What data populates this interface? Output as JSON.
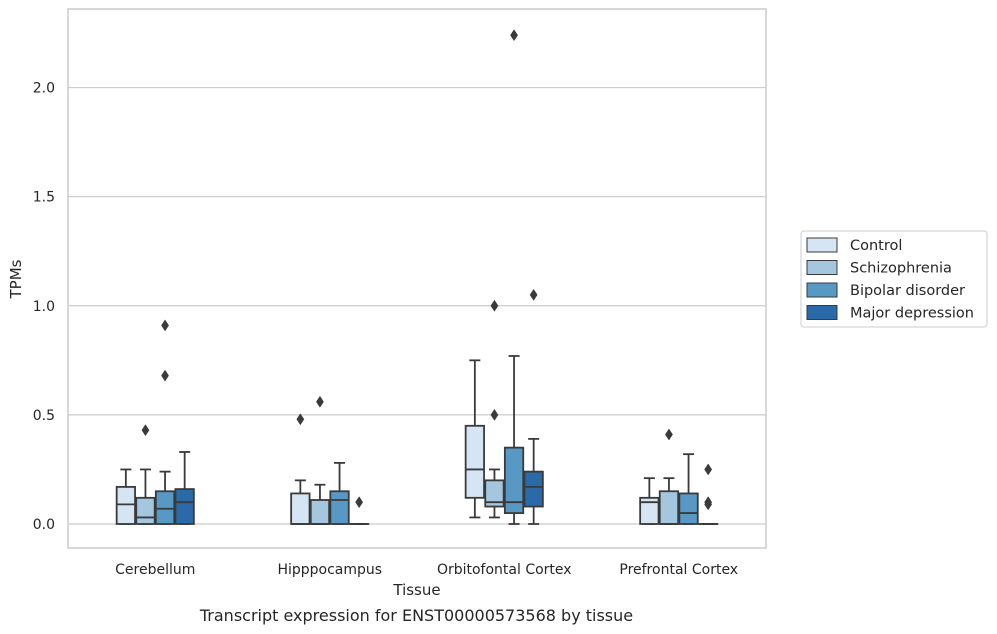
{
  "caption": "Transcript expression for ENST00000573568 by tissue",
  "chart_data": {
    "type": "box",
    "xlabel": "Tissue",
    "ylabel": "TPMs",
    "ylim": [
      -0.11,
      2.36
    ],
    "yticks": [
      0.0,
      0.5,
      1.0,
      1.5,
      2.0
    ],
    "ytick_labels": [
      "0.0",
      "0.5",
      "1.0",
      "1.5",
      "2.0"
    ],
    "grid": "horizontal",
    "legend_position": "right",
    "categories": [
      "Cerebellum",
      "Hipppocampus",
      "Orbitofontal Cortex",
      "Prefrontal Cortex"
    ],
    "series": [
      {
        "name": "Control",
        "color": "#d6e5f4",
        "boxes": [
          {
            "q1": 0.0,
            "median": 0.09,
            "q3": 0.17,
            "whislo": 0.0,
            "whishi": 0.25,
            "fliers": []
          },
          {
            "q1": 0.0,
            "median": 0.0,
            "q3": 0.14,
            "whislo": 0.0,
            "whishi": 0.2,
            "fliers": [
              0.48
            ]
          },
          {
            "q1": 0.12,
            "median": 0.25,
            "q3": 0.45,
            "whislo": 0.03,
            "whishi": 0.75,
            "fliers": []
          },
          {
            "q1": 0.0,
            "median": 0.1,
            "q3": 0.12,
            "whislo": 0.0,
            "whishi": 0.21,
            "fliers": []
          }
        ]
      },
      {
        "name": "Schizophrenia",
        "color": "#a4c7df",
        "boxes": [
          {
            "q1": 0.0,
            "median": 0.03,
            "q3": 0.12,
            "whislo": 0.0,
            "whishi": 0.25,
            "fliers": [
              0.43
            ]
          },
          {
            "q1": 0.0,
            "median": 0.0,
            "q3": 0.11,
            "whislo": 0.0,
            "whishi": 0.18,
            "fliers": [
              0.56
            ]
          },
          {
            "q1": 0.08,
            "median": 0.1,
            "q3": 0.2,
            "whislo": 0.03,
            "whishi": 0.25,
            "fliers": [
              0.5,
              1.0
            ]
          },
          {
            "q1": 0.0,
            "median": 0.0,
            "q3": 0.15,
            "whislo": 0.0,
            "whishi": 0.21,
            "fliers": [
              0.41
            ]
          }
        ]
      },
      {
        "name": "Bipolar disorder",
        "color": "#5898c4",
        "boxes": [
          {
            "q1": 0.0,
            "median": 0.07,
            "q3": 0.15,
            "whislo": 0.0,
            "whishi": 0.24,
            "fliers": [
              0.68,
              0.91
            ]
          },
          {
            "q1": 0.0,
            "median": 0.11,
            "q3": 0.15,
            "whislo": 0.0,
            "whishi": 0.28,
            "fliers": []
          },
          {
            "q1": 0.05,
            "median": 0.1,
            "q3": 0.35,
            "whislo": 0.0,
            "whishi": 0.77,
            "fliers": [
              2.24
            ]
          },
          {
            "q1": 0.0,
            "median": 0.05,
            "q3": 0.14,
            "whislo": 0.0,
            "whishi": 0.32,
            "fliers": []
          }
        ]
      },
      {
        "name": "Major depression",
        "color": "#2b6aa8",
        "boxes": [
          {
            "q1": 0.0,
            "median": 0.1,
            "q3": 0.16,
            "whislo": 0.0,
            "whishi": 0.33,
            "fliers": []
          },
          {
            "q1": 0.0,
            "median": 0.0,
            "q3": 0.0,
            "whislo": 0.0,
            "whishi": 0.0,
            "fliers": [
              0.1
            ]
          },
          {
            "q1": 0.08,
            "median": 0.17,
            "q3": 0.24,
            "whislo": 0.0,
            "whishi": 0.39,
            "fliers": [
              1.05
            ]
          },
          {
            "q1": 0.0,
            "median": 0.0,
            "q3": 0.0,
            "whislo": 0.0,
            "whishi": 0.0,
            "fliers": [
              0.09,
              0.1,
              0.25
            ]
          }
        ]
      }
    ]
  }
}
